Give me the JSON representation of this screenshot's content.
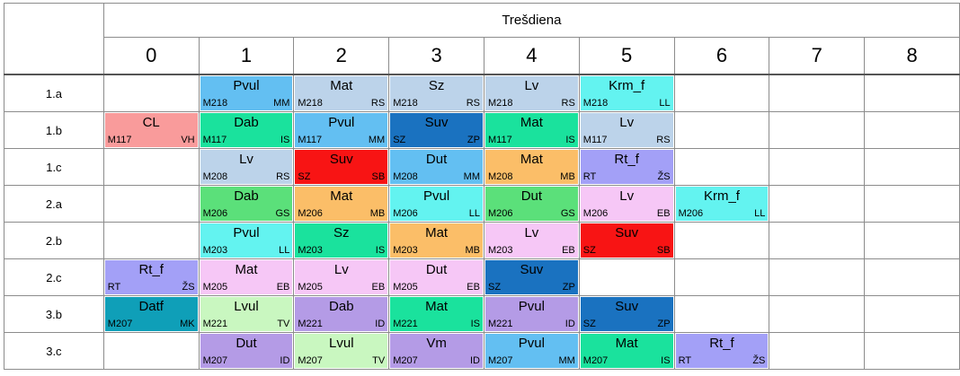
{
  "day": "Trešdiena",
  "periods": [
    "0",
    "1",
    "2",
    "3",
    "4",
    "5",
    "6",
    "7",
    "8"
  ],
  "rows": [
    {
      "cls": "1.a",
      "cells": [
        null,
        {
          "s": "Pvul",
          "r": "M218",
          "t": "MM",
          "c": "#63bff2"
        },
        {
          "s": "Mat",
          "r": "M218",
          "t": "RS",
          "c": "#bcd3ea"
        },
        {
          "s": "Sz",
          "r": "M218",
          "t": "RS",
          "c": "#bcd3ea"
        },
        {
          "s": "Lv",
          "r": "M218",
          "t": "RS",
          "c": "#bcd3ea"
        },
        {
          "s": "Krm_f",
          "r": "M218",
          "t": "LL",
          "c": "#63f3f0"
        },
        null,
        null,
        null
      ]
    },
    {
      "cls": "1.b",
      "cells": [
        {
          "s": "CL",
          "r": "M117",
          "t": "VH",
          "c": "#f99b9b"
        },
        {
          "s": "Dab",
          "r": "M117",
          "t": "IS",
          "c": "#1ae29d"
        },
        {
          "s": "Pvul",
          "r": "M117",
          "t": "MM",
          "c": "#63bff2"
        },
        {
          "s": "Suv",
          "r": "SZ",
          "t": "ZP",
          "c": "#1a72c0"
        },
        {
          "s": "Mat",
          "r": "M117",
          "t": "IS",
          "c": "#1ae29d"
        },
        {
          "s": "Lv",
          "r": "M117",
          "t": "RS",
          "c": "#bcd3ea"
        },
        null,
        null,
        null
      ]
    },
    {
      "cls": "1.c",
      "cells": [
        null,
        {
          "s": "Lv",
          "r": "M208",
          "t": "RS",
          "c": "#bcd3ea"
        },
        {
          "s": "Suv",
          "r": "SZ",
          "t": "SB",
          "c": "#f81414"
        },
        {
          "s": "Dut",
          "r": "M208",
          "t": "MM",
          "c": "#63bff2"
        },
        {
          "s": "Mat",
          "r": "M208",
          "t": "MB",
          "c": "#fbbe68"
        },
        {
          "s": "Rt_f",
          "r": "RT",
          "t": "ŽS",
          "c": "#a3a0f7"
        },
        null,
        null,
        null
      ]
    },
    {
      "cls": "2.a",
      "cells": [
        null,
        {
          "s": "Dab",
          "r": "M206",
          "t": "GS",
          "c": "#5be07a"
        },
        {
          "s": "Mat",
          "r": "M206",
          "t": "MB",
          "c": "#fbbe68"
        },
        {
          "s": "Pvul",
          "r": "M206",
          "t": "LL",
          "c": "#63f3f0"
        },
        {
          "s": "Dut",
          "r": "M206",
          "t": "GS",
          "c": "#5be07a"
        },
        {
          "s": "Lv",
          "r": "M206",
          "t": "EB",
          "c": "#f6c7f6"
        },
        {
          "s": "Krm_f",
          "r": "M206",
          "t": "LL",
          "c": "#63f3f0"
        },
        null,
        null
      ]
    },
    {
      "cls": "2.b",
      "cells": [
        null,
        {
          "s": "Pvul",
          "r": "M203",
          "t": "LL",
          "c": "#63f3f0"
        },
        {
          "s": "Sz",
          "r": "M203",
          "t": "IS",
          "c": "#1ae29d"
        },
        {
          "s": "Mat",
          "r": "M203",
          "t": "MB",
          "c": "#fbbe68"
        },
        {
          "s": "Lv",
          "r": "M203",
          "t": "EB",
          "c": "#f6c7f6"
        },
        {
          "s": "Suv",
          "r": "SZ",
          "t": "SB",
          "c": "#f81414"
        },
        null,
        null,
        null
      ]
    },
    {
      "cls": "2.c",
      "cells": [
        {
          "s": "Rt_f",
          "r": "RT",
          "t": "ŽS",
          "c": "#a3a0f7"
        },
        {
          "s": "Mat",
          "r": "M205",
          "t": "EB",
          "c": "#f6c7f6"
        },
        {
          "s": "Lv",
          "r": "M205",
          "t": "EB",
          "c": "#f6c7f6"
        },
        {
          "s": "Dut",
          "r": "M205",
          "t": "EB",
          "c": "#f6c7f6"
        },
        {
          "s": "Suv",
          "r": "SZ",
          "t": "ZP",
          "c": "#1a72c0"
        },
        null,
        null,
        null,
        null
      ]
    },
    {
      "cls": "3.b",
      "cells": [
        {
          "s": "Datf",
          "r": "M207",
          "t": "MK",
          "c": "#0f9fb8"
        },
        {
          "s": "Lvul",
          "r": "M221",
          "t": "TV",
          "c": "#c9f7c0"
        },
        {
          "s": "Dab",
          "r": "M221",
          "t": "ID",
          "c": "#b49be6"
        },
        {
          "s": "Mat",
          "r": "M221",
          "t": "IS",
          "c": "#1ae29d"
        },
        {
          "s": "Pvul",
          "r": "M221",
          "t": "ID",
          "c": "#b49be6"
        },
        {
          "s": "Suv",
          "r": "SZ",
          "t": "ZP",
          "c": "#1a72c0"
        },
        null,
        null,
        null
      ]
    },
    {
      "cls": "3.c",
      "cells": [
        null,
        {
          "s": "Dut",
          "r": "M207",
          "t": "ID",
          "c": "#b49be6"
        },
        {
          "s": "Lvul",
          "r": "M207",
          "t": "TV",
          "c": "#c9f7c0"
        },
        {
          "s": "Vm",
          "r": "M207",
          "t": "ID",
          "c": "#b49be6"
        },
        {
          "s": "Pvul",
          "r": "M207",
          "t": "MM",
          "c": "#63bff2"
        },
        {
          "s": "Mat",
          "r": "M207",
          "t": "IS",
          "c": "#1ae29d"
        },
        {
          "s": "Rt_f",
          "r": "RT",
          "t": "ŽS",
          "c": "#a3a0f7"
        },
        null,
        null
      ]
    }
  ]
}
